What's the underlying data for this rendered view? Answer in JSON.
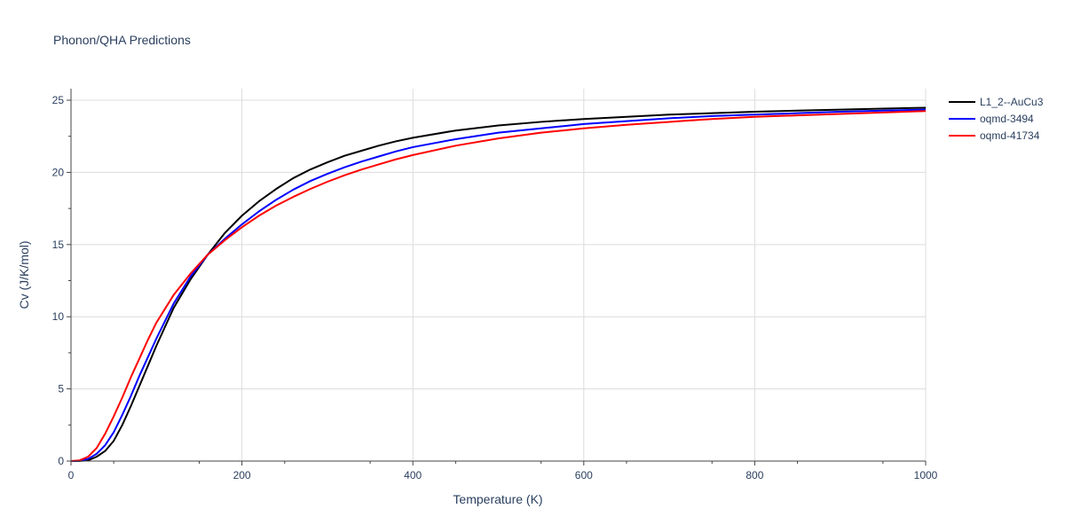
{
  "chart_data": {
    "type": "line",
    "title": "Phonon/QHA Predictions",
    "xlabel": "Temperature (K)",
    "ylabel": "Cv (J/K/mol)",
    "xlim": [
      0,
      1000
    ],
    "ylim": [
      0,
      25.8
    ],
    "x_ticks": [
      0,
      200,
      400,
      600,
      800,
      1000
    ],
    "y_ticks": [
      0,
      5,
      10,
      15,
      20,
      25
    ],
    "x_tick_labels": [
      "0",
      "200",
      "400",
      "600",
      "800",
      "1000"
    ],
    "y_tick_labels": [
      "0",
      "5",
      "10",
      "15",
      "20",
      "25"
    ],
    "grid": true,
    "legend_position": "top-right",
    "series": [
      {
        "name": "L1_2--AuCu3",
        "color": "#000000",
        "x": [
          0,
          10,
          20,
          30,
          40,
          50,
          60,
          70,
          80,
          90,
          100,
          120,
          140,
          160,
          180,
          200,
          220,
          240,
          260,
          280,
          300,
          320,
          340,
          360,
          380,
          400,
          450,
          500,
          550,
          600,
          650,
          700,
          750,
          800,
          850,
          900,
          950,
          1000
        ],
        "y": [
          0,
          0.01,
          0.05,
          0.3,
          0.7,
          1.4,
          2.5,
          3.8,
          5.2,
          6.6,
          8.0,
          10.6,
          12.6,
          14.3,
          15.8,
          17.0,
          18.0,
          18.85,
          19.6,
          20.2,
          20.7,
          21.15,
          21.5,
          21.85,
          22.15,
          22.4,
          22.9,
          23.25,
          23.5,
          23.7,
          23.85,
          24.0,
          24.1,
          24.2,
          24.28,
          24.35,
          24.42,
          24.48
        ]
      },
      {
        "name": "oqmd-3494",
        "color": "#0000ff",
        "x": [
          0,
          10,
          20,
          30,
          40,
          50,
          60,
          70,
          80,
          90,
          100,
          120,
          140,
          160,
          180,
          200,
          220,
          240,
          260,
          280,
          300,
          320,
          340,
          360,
          380,
          400,
          450,
          500,
          550,
          600,
          650,
          700,
          750,
          800,
          850,
          900,
          950,
          1000
        ],
        "y": [
          0,
          0.02,
          0.15,
          0.5,
          1.1,
          2.0,
          3.2,
          4.5,
          5.9,
          7.2,
          8.5,
          10.9,
          12.8,
          14.3,
          15.4,
          16.4,
          17.3,
          18.1,
          18.8,
          19.4,
          19.9,
          20.35,
          20.75,
          21.1,
          21.45,
          21.75,
          22.3,
          22.75,
          23.05,
          23.35,
          23.55,
          23.75,
          23.9,
          24.0,
          24.1,
          24.2,
          24.28,
          24.35
        ]
      },
      {
        "name": "oqmd-41734",
        "color": "#ff0000",
        "x": [
          0,
          10,
          20,
          30,
          40,
          50,
          60,
          70,
          80,
          90,
          100,
          120,
          140,
          160,
          180,
          200,
          220,
          240,
          260,
          280,
          300,
          320,
          340,
          360,
          380,
          400,
          450,
          500,
          550,
          600,
          650,
          700,
          750,
          800,
          850,
          900,
          950,
          1000
        ],
        "y": [
          0,
          0.05,
          0.3,
          0.9,
          1.9,
          3.1,
          4.4,
          5.8,
          7.1,
          8.4,
          9.6,
          11.5,
          13.0,
          14.3,
          15.3,
          16.2,
          17.0,
          17.7,
          18.3,
          18.85,
          19.35,
          19.8,
          20.2,
          20.55,
          20.9,
          21.2,
          21.85,
          22.35,
          22.75,
          23.05,
          23.3,
          23.5,
          23.7,
          23.85,
          23.95,
          24.05,
          24.15,
          24.25
        ]
      }
    ]
  }
}
